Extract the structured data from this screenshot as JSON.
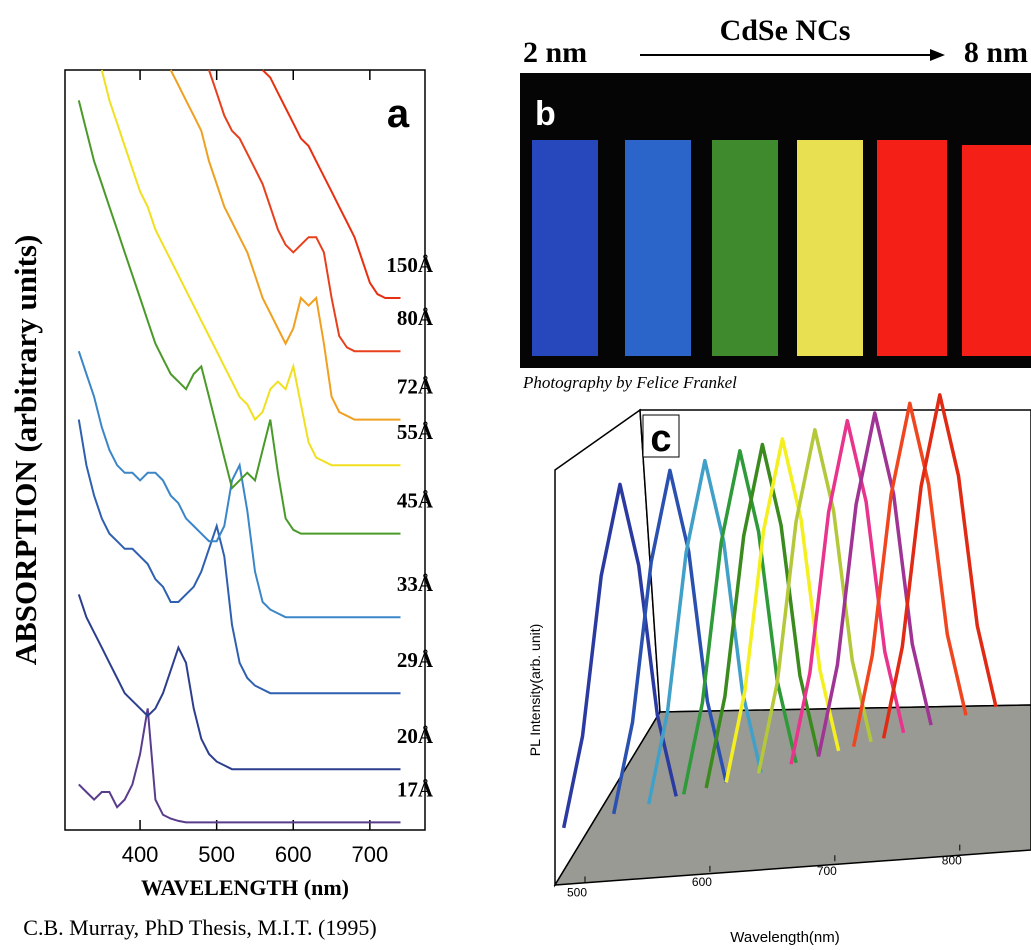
{
  "chart_data": [
    {
      "type": "line",
      "label": "a",
      "ylabel": "ABSORPTION (arbitrary units)",
      "xlabel": "WAVELENGTH (nm)",
      "xlim": [
        302,
        772
      ],
      "ylim": [
        0,
        100
      ],
      "xticks": [
        400,
        500,
        600,
        700
      ],
      "x": [
        320,
        330,
        340,
        350,
        360,
        370,
        380,
        390,
        400,
        410,
        420,
        430,
        440,
        450,
        460,
        470,
        480,
        490,
        500,
        510,
        520,
        530,
        540,
        550,
        560,
        570,
        580,
        590,
        600,
        610,
        620,
        630,
        640,
        650,
        660,
        670,
        680,
        690,
        700,
        710,
        720,
        730,
        740
      ],
      "series": [
        {
          "name": "17Å",
          "color": "#5a3c8c",
          "values": [
            6,
            5,
            4,
            5,
            5,
            3,
            4,
            6,
            10,
            16,
            4,
            2,
            1.5,
            1.2,
            1,
            1,
            1,
            1,
            1,
            1,
            1,
            1,
            1,
            1,
            1,
            1,
            1,
            1,
            1,
            1,
            1,
            1,
            1,
            1,
            1,
            1,
            1,
            1,
            1,
            1,
            1,
            1,
            1
          ]
        },
        {
          "name": "20Å",
          "color": "#2c3f8e",
          "values": [
            31,
            28,
            26,
            24,
            22,
            20,
            18,
            17,
            16,
            15,
            16,
            18,
            21,
            24,
            22,
            16,
            12,
            10,
            9,
            8.5,
            8,
            8,
            8,
            8,
            8,
            8,
            8,
            8,
            8,
            8,
            8,
            8,
            8,
            8,
            8,
            8,
            8,
            8,
            8,
            8,
            8,
            8,
            8
          ]
        },
        {
          "name": "29Å",
          "color": "#2f5fb0",
          "values": [
            54,
            48,
            44,
            41,
            39,
            38,
            37,
            37,
            36,
            35,
            33,
            32,
            30,
            30,
            31,
            32,
            34,
            37,
            40,
            36,
            27,
            22,
            20,
            19,
            18.5,
            18,
            18,
            18,
            18,
            18,
            18,
            18,
            18,
            18,
            18,
            18,
            18,
            18,
            18,
            18,
            18,
            18,
            18
          ]
        },
        {
          "name": "33Å",
          "color": "#3a86c8",
          "values": [
            63,
            60,
            57,
            53,
            50,
            48,
            47,
            47,
            46,
            47,
            47,
            46,
            44,
            43,
            41,
            40,
            39,
            38,
            38,
            40,
            46,
            48,
            42,
            34,
            30,
            29,
            28.5,
            28,
            28,
            28,
            28,
            28,
            28,
            28,
            28,
            28,
            28,
            28,
            28,
            28,
            28,
            28,
            28
          ]
        },
        {
          "name": "45Å",
          "color": "#4a9a2a",
          "values": [
            96,
            92,
            88,
            85,
            82,
            79,
            76,
            73,
            70,
            67,
            64,
            62,
            60,
            59,
            58,
            60,
            61,
            57,
            53,
            49,
            45,
            46,
            47,
            46,
            50,
            54,
            47,
            41,
            39.5,
            39,
            39,
            39,
            39,
            39,
            39,
            39,
            39,
            39,
            39,
            39,
            39,
            39,
            39
          ]
        },
        {
          "name": "55Å",
          "color": "#f0e020",
          "values": [
            null,
            null,
            null,
            100,
            96,
            93,
            90,
            87,
            84,
            82,
            79,
            77,
            75,
            73,
            71,
            69,
            67,
            65,
            63,
            61,
            59,
            57,
            56,
            54,
            55,
            58,
            59,
            58,
            61,
            56,
            51,
            49,
            48.5,
            48,
            48,
            48,
            48,
            48,
            48,
            48,
            48,
            48,
            48
          ]
        },
        {
          "name": "72Å",
          "color": "#f0a020",
          "values": [
            null,
            null,
            null,
            null,
            null,
            null,
            null,
            null,
            null,
            null,
            null,
            null,
            100,
            98,
            96,
            94,
            92,
            88,
            85,
            82,
            80,
            78,
            76,
            73,
            70,
            68,
            66,
            64,
            66,
            70,
            69,
            70,
            64,
            57,
            55,
            54.5,
            54,
            54,
            54,
            54,
            54,
            54,
            54
          ]
        },
        {
          "name": "80Å",
          "color": "#e8401c",
          "values": [
            null,
            null,
            null,
            null,
            null,
            null,
            null,
            null,
            null,
            null,
            null,
            null,
            null,
            null,
            null,
            null,
            null,
            100,
            97,
            94,
            92,
            91,
            89,
            87,
            85,
            82,
            79,
            77,
            76,
            77,
            78,
            78,
            76,
            70,
            65,
            63.5,
            63,
            63,
            63,
            63,
            63,
            63,
            63
          ]
        },
        {
          "name": "150Å",
          "color": "#e83010",
          "values": [
            null,
            null,
            null,
            null,
            null,
            null,
            null,
            null,
            null,
            null,
            null,
            null,
            null,
            null,
            null,
            null,
            null,
            null,
            null,
            null,
            null,
            null,
            null,
            null,
            100,
            99,
            97,
            95,
            93,
            91,
            90,
            88,
            86,
            84,
            82,
            80,
            78,
            75,
            72,
            70.5,
            70,
            70,
            70
          ]
        }
      ]
    },
    {
      "type": "line3d",
      "label": "c",
      "ylabel": "PL Intensity(arb. unit)",
      "xlabel": "Wavelength(nm)",
      "xlim": [
        480,
        857
      ],
      "ylim": [
        0,
        100
      ],
      "xticks": [
        500,
        600,
        700,
        800
      ],
      "series": [
        {
          "color": "#2a3aa0",
          "x": [
            483,
            498,
            513,
            528,
            543,
            558,
            573
          ],
          "values": [
            5,
            30,
            75,
            100,
            75,
            30,
            5
          ]
        },
        {
          "color": "#2a50b0",
          "x": [
            523,
            538,
            553,
            568,
            583,
            598,
            613
          ],
          "values": [
            5,
            30,
            75,
            100,
            75,
            30,
            5
          ]
        },
        {
          "color": "#40a0c8",
          "x": [
            551,
            566,
            581,
            596,
            611,
            626,
            641
          ],
          "values": [
            5,
            30,
            75,
            100,
            75,
            30,
            5
          ]
        },
        {
          "color": "#2e9a3a",
          "x": [
            579,
            594,
            609,
            624,
            639,
            654,
            669
          ],
          "values": [
            5,
            30,
            75,
            100,
            75,
            30,
            5
          ]
        },
        {
          "color": "#3a8a1e",
          "x": [
            597,
            612,
            627,
            642,
            657,
            672,
            687
          ],
          "values": [
            5,
            30,
            75,
            100,
            75,
            30,
            5
          ]
        },
        {
          "color": "#f4f020",
          "x": [
            613,
            628,
            643,
            658,
            673,
            688,
            703
          ],
          "values": [
            5,
            30,
            75,
            100,
            75,
            30,
            5
          ]
        },
        {
          "color": "#b4c83a",
          "x": [
            639,
            654,
            669,
            684,
            699,
            714,
            729
          ],
          "values": [
            5,
            30,
            75,
            100,
            75,
            30,
            5
          ]
        },
        {
          "color": "#e8348c",
          "x": [
            665,
            680,
            695,
            710,
            725,
            740,
            755
          ],
          "values": [
            5,
            30,
            75,
            100,
            75,
            30,
            5
          ]
        },
        {
          "color": "#a03494",
          "x": [
            687,
            702,
            717,
            732,
            747,
            762,
            777
          ],
          "values": [
            5,
            30,
            75,
            100,
            75,
            30,
            5
          ]
        },
        {
          "color": "#f04620",
          "x": [
            715,
            730,
            745,
            760,
            775,
            790,
            805
          ],
          "values": [
            5,
            30,
            75,
            100,
            75,
            30,
            5
          ]
        },
        {
          "color": "#e02a14",
          "x": [
            739,
            754,
            769,
            784,
            799,
            814,
            829
          ],
          "values": [
            5,
            30,
            75,
            100,
            75,
            30,
            5
          ]
        }
      ]
    }
  ],
  "panel_b": {
    "label": "b",
    "left": "2 nm",
    "title": "CdSe NCs",
    "right": "8 nm",
    "credit": "Photography by Felice Frankel"
  },
  "citation": "C.B. Murray, PhD Thesis, M.I.T. (1995)"
}
